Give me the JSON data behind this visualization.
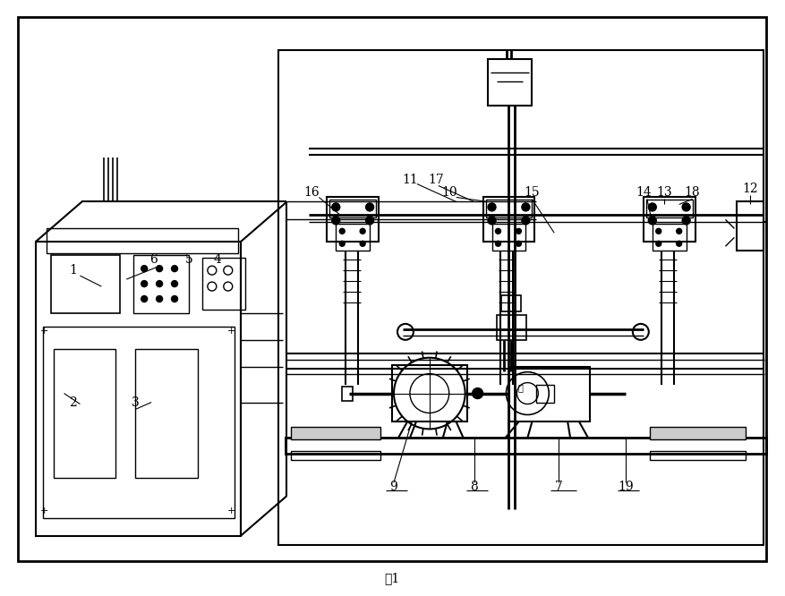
{
  "title": "图1",
  "title_fontsize": 10,
  "bg_color": "#ffffff",
  "line_color": "#000000",
  "fig_width": 8.77,
  "fig_height": 6.66,
  "dpi": 100
}
